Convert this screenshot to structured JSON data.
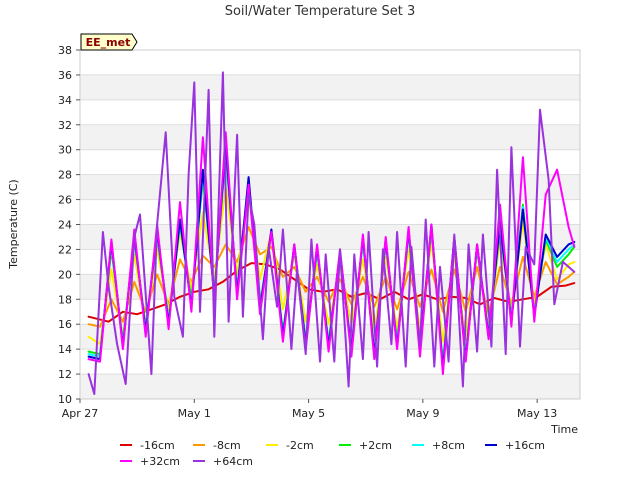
{
  "chart_data": {
    "type": "line",
    "title": "Soil/Water Temperature Set 3",
    "xlabel": "Time",
    "ylabel": "Temperature (C)",
    "badge": "EE_met",
    "ylim": [
      10,
      38
    ],
    "yticks": [
      10,
      12,
      14,
      16,
      18,
      20,
      22,
      24,
      26,
      28,
      30,
      32,
      34,
      36,
      38
    ],
    "xlim": [
      0,
      17.5
    ],
    "xticks": [
      {
        "value": 0,
        "label": "Apr 27"
      },
      {
        "value": 4,
        "label": "May 1"
      },
      {
        "value": 8,
        "label": "May 5"
      },
      {
        "value": 12,
        "label": "May 9"
      },
      {
        "value": 16,
        "label": "May 13"
      }
    ],
    "grid": true,
    "legend_position": "bottom",
    "series": [
      {
        "name": "-16cm",
        "color": "#dd0000",
        "x": [
          0.3,
          1,
          1.5,
          2,
          2.5,
          3,
          3.5,
          4,
          4.5,
          5,
          5.5,
          6,
          6.5,
          7,
          7.5,
          8,
          8.5,
          9,
          9.5,
          10,
          10.5,
          11,
          11.5,
          12,
          12.5,
          13,
          13.5,
          14,
          14.5,
          15,
          15.5,
          16,
          16.5,
          17,
          17.3
        ],
        "y": [
          16.6,
          16.2,
          17.0,
          16.8,
          17.2,
          17.6,
          18.2,
          18.6,
          18.8,
          19.4,
          20.3,
          20.9,
          20.8,
          20.4,
          19.6,
          18.8,
          18.6,
          18.8,
          18.2,
          18.5,
          18.0,
          18.6,
          18.0,
          18.4,
          18.0,
          18.2,
          18.1,
          17.6,
          18.1,
          17.8,
          18.0,
          18.2,
          19.0,
          19.1,
          19.3
        ]
      },
      {
        "name": "-8cm",
        "color": "#ff9900",
        "x": [
          0.3,
          0.7,
          1.1,
          1.5,
          1.9,
          2.3,
          2.7,
          3.1,
          3.5,
          3.9,
          4.3,
          4.7,
          5.1,
          5.5,
          5.9,
          6.3,
          6.7,
          7.1,
          7.5,
          7.9,
          8.3,
          8.7,
          9.1,
          9.5,
          9.9,
          10.3,
          10.7,
          11.1,
          11.5,
          11.9,
          12.3,
          12.7,
          13.1,
          13.5,
          13.9,
          14.3,
          14.7,
          15.1,
          15.5,
          15.9,
          16.3,
          16.7,
          17.1,
          17.3
        ],
        "y": [
          16.0,
          15.8,
          18.0,
          16.2,
          19.4,
          17.0,
          20.0,
          17.6,
          21.2,
          19.4,
          21.5,
          20.6,
          22.4,
          21.0,
          23.8,
          21.6,
          22.2,
          19.8,
          20.6,
          18.6,
          19.8,
          17.8,
          19.6,
          17.6,
          19.8,
          17.4,
          19.8,
          17.2,
          20.2,
          17.4,
          20.4,
          17.0,
          20.4,
          17.0,
          20.6,
          16.8,
          20.6,
          17.6,
          21.4,
          18.2,
          21.0,
          19.2,
          19.8,
          20.2
        ]
      },
      {
        "name": "-2cm",
        "color": "#ffee00",
        "x": [
          0.3,
          0.7,
          1.1,
          1.5,
          1.9,
          2.3,
          2.7,
          3.1,
          3.5,
          3.9,
          4.3,
          4.7,
          5.1,
          5.5,
          5.9,
          6.3,
          6.7,
          7.1,
          7.5,
          7.9,
          8.3,
          8.7,
          9.1,
          9.5,
          9.9,
          10.3,
          10.7,
          11.1,
          11.5,
          11.9,
          12.3,
          12.7,
          13.1,
          13.5,
          13.9,
          14.3,
          14.7,
          15.1,
          15.5,
          15.9,
          16.3,
          16.7,
          17.1,
          17.3
        ],
        "y": [
          15.0,
          14.4,
          20.4,
          15.0,
          21.6,
          16.0,
          22.0,
          17.0,
          23.4,
          18.8,
          25.0,
          19.6,
          27.0,
          20.0,
          26.4,
          19.6,
          23.4,
          17.2,
          21.6,
          16.2,
          20.8,
          16.0,
          20.6,
          16.0,
          21.2,
          15.6,
          21.4,
          15.6,
          22.0,
          15.6,
          22.6,
          14.6,
          21.6,
          14.8,
          21.8,
          15.6,
          22.8,
          17.0,
          24.2,
          17.6,
          22.4,
          19.6,
          20.8,
          21.0
        ]
      },
      {
        "name": "+2cm",
        "color": "#00ee00",
        "x": [
          0.3,
          0.7,
          1.1,
          1.5,
          1.9,
          2.3,
          2.7,
          3.1,
          3.5,
          3.9,
          4.3,
          4.7,
          5.1,
          5.5,
          5.9,
          6.3,
          6.7,
          7.1,
          7.5,
          7.9,
          8.3,
          8.7,
          9.1,
          9.5,
          9.9,
          10.3,
          10.7,
          11.1,
          11.5,
          11.9,
          12.3,
          12.7,
          13.1,
          13.5,
          13.9,
          14.3,
          14.7,
          15.1,
          15.5,
          15.9,
          16.3,
          16.7,
          17.1,
          17.3
        ],
        "y": [
          13.8,
          13.6,
          22.0,
          14.6,
          22.8,
          15.8,
          23.0,
          16.4,
          24.0,
          18.0,
          27.6,
          18.6,
          29.6,
          18.8,
          27.4,
          17.6,
          23.4,
          15.4,
          22.0,
          14.8,
          21.8,
          14.6,
          21.4,
          14.2,
          22.6,
          14.0,
          22.4,
          14.6,
          23.2,
          14.2,
          23.6,
          12.8,
          22.6,
          13.6,
          22.0,
          15.4,
          23.6,
          16.6,
          25.6,
          17.0,
          22.8,
          20.6,
          21.6,
          22.2
        ]
      },
      {
        "name": "+8cm",
        "color": "#00ffff",
        "x": [
          0.3,
          0.7,
          1.1,
          1.5,
          1.9,
          2.3,
          2.7,
          3.1,
          3.5,
          3.9,
          4.3,
          4.7,
          5.1,
          5.5,
          5.9,
          6.3,
          6.7,
          7.1,
          7.5,
          7.9,
          8.3,
          8.7,
          9.1,
          9.5,
          9.9,
          10.3,
          10.7,
          11.1,
          11.5,
          11.9,
          12.3,
          12.7,
          13.1,
          13.5,
          13.9,
          14.3,
          14.7,
          15.1,
          15.5,
          15.9,
          16.3,
          16.7,
          17.1,
          17.3
        ],
        "y": [
          13.6,
          13.4,
          22.4,
          14.4,
          23.0,
          15.6,
          23.4,
          16.2,
          24.2,
          17.6,
          28.0,
          18.4,
          30.0,
          18.6,
          27.6,
          17.4,
          23.4,
          15.2,
          22.2,
          14.6,
          22.0,
          14.4,
          21.6,
          14.0,
          22.8,
          13.8,
          22.6,
          14.4,
          23.4,
          14.0,
          23.8,
          12.6,
          22.8,
          13.4,
          22.2,
          15.2,
          24.0,
          16.4,
          25.4,
          16.8,
          23.0,
          21.0,
          22.0,
          22.4
        ]
      },
      {
        "name": "+16cm",
        "color": "#0000cc",
        "x": [
          0.3,
          0.7,
          1.1,
          1.5,
          1.9,
          2.3,
          2.7,
          3.1,
          3.5,
          3.9,
          4.3,
          4.7,
          5.1,
          5.5,
          5.9,
          6.3,
          6.7,
          7.1,
          7.5,
          7.9,
          8.3,
          8.7,
          9.1,
          9.5,
          9.9,
          10.3,
          10.7,
          11.1,
          11.5,
          11.9,
          12.3,
          12.7,
          13.1,
          13.5,
          13.9,
          14.3,
          14.7,
          15.1,
          15.5,
          15.9,
          16.3,
          16.7,
          17.1,
          17.3
        ],
        "y": [
          13.4,
          13.2,
          22.6,
          14.2,
          23.2,
          15.4,
          23.6,
          16.0,
          24.4,
          17.4,
          28.4,
          18.2,
          30.4,
          18.4,
          27.8,
          17.2,
          23.6,
          15.0,
          22.4,
          14.4,
          22.2,
          14.2,
          21.8,
          13.8,
          23.0,
          13.6,
          22.8,
          14.2,
          23.6,
          13.8,
          24.0,
          12.4,
          23.0,
          13.2,
          22.4,
          15.0,
          24.2,
          16.2,
          25.2,
          16.6,
          23.2,
          21.4,
          22.4,
          22.6
        ]
      },
      {
        "name": "+32cm",
        "color": "#ff00ff",
        "x": [
          0.3,
          0.7,
          1.1,
          1.5,
          1.9,
          2.3,
          2.7,
          3.1,
          3.5,
          3.9,
          4.3,
          4.7,
          5.1,
          5.5,
          5.9,
          6.3,
          6.7,
          7.1,
          7.5,
          7.9,
          8.3,
          8.7,
          9.1,
          9.5,
          9.9,
          10.3,
          10.7,
          11.1,
          11.5,
          11.9,
          12.3,
          12.7,
          13.1,
          13.5,
          13.9,
          14.3,
          14.7,
          15.1,
          15.5,
          15.9,
          16.3,
          16.7,
          17.1,
          17.3
        ],
        "y": [
          13.2,
          13.0,
          22.8,
          14.0,
          23.6,
          15.0,
          24.0,
          15.6,
          25.8,
          17.0,
          31.0,
          17.8,
          31.4,
          18.0,
          27.2,
          16.8,
          23.4,
          14.6,
          22.4,
          14.0,
          22.4,
          13.8,
          22.0,
          13.4,
          23.2,
          13.2,
          23.0,
          14.0,
          23.8,
          13.4,
          24.0,
          12.0,
          23.0,
          13.0,
          22.4,
          14.8,
          25.6,
          15.8,
          29.4,
          16.2,
          26.4,
          28.4,
          23.8,
          22.2
        ]
      },
      {
        "name": "+64cm",
        "color": "#9933dd",
        "x": [
          0.3,
          0.5,
          0.8,
          1.0,
          1.3,
          1.6,
          1.9,
          2.1,
          2.5,
          2.7,
          3.0,
          3.3,
          3.6,
          3.8,
          4.0,
          4.2,
          4.5,
          4.7,
          5.0,
          5.2,
          5.5,
          5.7,
          5.9,
          6.1,
          6.4,
          6.6,
          6.9,
          7.1,
          7.4,
          7.6,
          7.9,
          8.1,
          8.4,
          8.6,
          8.9,
          9.1,
          9.4,
          9.6,
          9.9,
          10.1,
          10.4,
          10.6,
          10.9,
          11.1,
          11.4,
          11.6,
          11.9,
          12.1,
          12.4,
          12.6,
          12.9,
          13.1,
          13.4,
          13.6,
          13.9,
          14.1,
          14.4,
          14.6,
          14.9,
          15.1,
          15.4,
          15.6,
          15.9,
          16.1,
          16.4,
          16.6,
          16.9,
          17.1,
          17.3
        ],
        "y": [
          12.0,
          10.4,
          23.4,
          19.0,
          14.4,
          11.2,
          23.0,
          24.8,
          12.0,
          24.0,
          31.4,
          18.2,
          15.0,
          28.0,
          35.4,
          17.0,
          34.8,
          15.0,
          36.2,
          16.2,
          31.2,
          16.6,
          26.4,
          24.0,
          14.8,
          22.2,
          17.4,
          23.6,
          14.0,
          20.4,
          13.6,
          22.8,
          13.0,
          21.6,
          13.0,
          22.0,
          11.0,
          21.6,
          13.2,
          23.4,
          12.6,
          22.0,
          14.4,
          23.4,
          12.6,
          22.2,
          14.2,
          24.4,
          12.6,
          20.6,
          13.0,
          23.2,
          11.0,
          22.4,
          13.8,
          23.2,
          14.2,
          28.4,
          13.6,
          30.2,
          14.2,
          22.2,
          20.8,
          33.2,
          27.6,
          17.6,
          21.0,
          20.6,
          20.2
        ]
      }
    ]
  }
}
